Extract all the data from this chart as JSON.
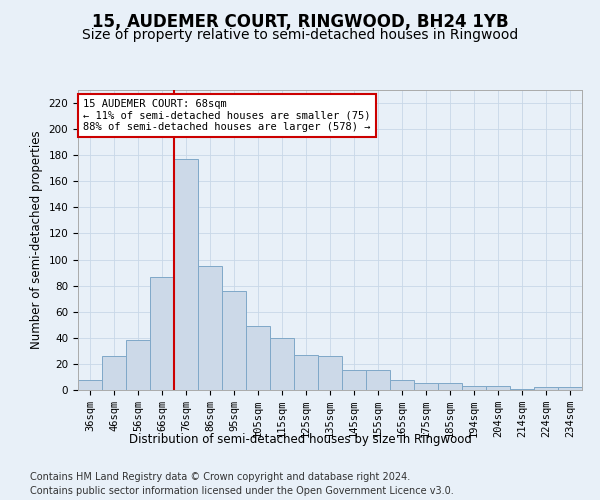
{
  "title": "15, AUDEMER COURT, RINGWOOD, BH24 1YB",
  "subtitle": "Size of property relative to semi-detached houses in Ringwood",
  "xlabel": "Distribution of semi-detached houses by size in Ringwood",
  "ylabel": "Number of semi-detached properties",
  "categories": [
    "36sqm",
    "46sqm",
    "56sqm",
    "66sqm",
    "76sqm",
    "86sqm",
    "95sqm",
    "105sqm",
    "115sqm",
    "125sqm",
    "135sqm",
    "145sqm",
    "155sqm",
    "165sqm",
    "175sqm",
    "185sqm",
    "194sqm",
    "204sqm",
    "214sqm",
    "224sqm",
    "234sqm"
  ],
  "values": [
    8,
    26,
    38,
    87,
    177,
    95,
    76,
    49,
    40,
    27,
    26,
    15,
    15,
    8,
    5,
    5,
    3,
    3,
    1,
    2,
    2
  ],
  "bar_color": "#ccd9e8",
  "bar_edge_color": "#7fa8c8",
  "grid_color": "#c8d8e8",
  "background_color": "#e8f0f8",
  "vline_x": 3.5,
  "vline_color": "#cc0000",
  "annotation_title": "15 AUDEMER COURT: 68sqm",
  "annotation_line1": "← 11% of semi-detached houses are smaller (75)",
  "annotation_line2": "88% of semi-detached houses are larger (578) →",
  "annotation_box_color": "#ffffff",
  "annotation_box_edge": "#cc0000",
  "ylim": [
    0,
    230
  ],
  "yticks": [
    0,
    20,
    40,
    60,
    80,
    100,
    120,
    140,
    160,
    180,
    200,
    220
  ],
  "footer1": "Contains HM Land Registry data © Crown copyright and database right 2024.",
  "footer2": "Contains public sector information licensed under the Open Government Licence v3.0.",
  "title_fontsize": 12,
  "subtitle_fontsize": 10,
  "axis_label_fontsize": 8.5,
  "tick_fontsize": 7.5,
  "annotation_fontsize": 7.5,
  "footer_fontsize": 7
}
